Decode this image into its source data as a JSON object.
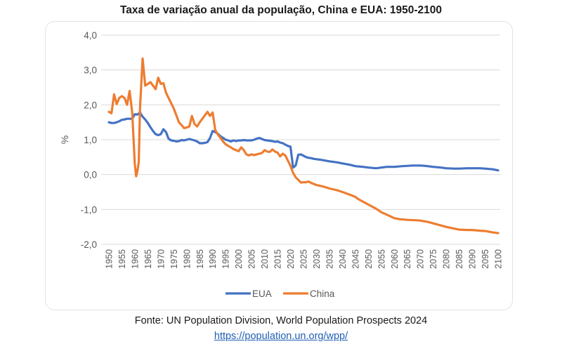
{
  "chart_data": {
    "type": "line",
    "title": "Taxa de variação anual da população, China e EUA: 1950-2100",
    "xlabel": "",
    "ylabel": "%",
    "xlim": [
      1950,
      2100
    ],
    "ylim": [
      -2.0,
      4.0
    ],
    "y_ticks": [
      4.0,
      3.0,
      2.0,
      1.0,
      0.0,
      -1.0,
      -2.0
    ],
    "y_tick_labels": [
      "4,0",
      "3,0",
      "2,0",
      "1,0",
      "0,0",
      "-1,0",
      "-2,0"
    ],
    "x_ticks": [
      1950,
      1955,
      1960,
      1965,
      1970,
      1975,
      1980,
      1985,
      1990,
      1995,
      2000,
      2005,
      2010,
      2015,
      2020,
      2025,
      2030,
      2035,
      2040,
      2045,
      2050,
      2055,
      2060,
      2065,
      2070,
      2075,
      2080,
      2085,
      2090,
      2095,
      2100
    ],
    "grid": true,
    "legend_position": "bottom",
    "series": [
      {
        "name": "EUA",
        "color": "#4472C4",
        "points": [
          [
            1950,
            1.5
          ],
          [
            1951,
            1.48
          ],
          [
            1952,
            1.48
          ],
          [
            1953,
            1.5
          ],
          [
            1954,
            1.53
          ],
          [
            1955,
            1.57
          ],
          [
            1956,
            1.58
          ],
          [
            1957,
            1.6
          ],
          [
            1958,
            1.6
          ],
          [
            1959,
            1.6
          ],
          [
            1960,
            1.73
          ],
          [
            1961,
            1.72
          ],
          [
            1962,
            1.78
          ],
          [
            1963,
            1.66
          ],
          [
            1964,
            1.58
          ],
          [
            1965,
            1.48
          ],
          [
            1966,
            1.36
          ],
          [
            1967,
            1.25
          ],
          [
            1968,
            1.16
          ],
          [
            1969,
            1.13
          ],
          [
            1970,
            1.16
          ],
          [
            1971,
            1.3
          ],
          [
            1972,
            1.22
          ],
          [
            1973,
            1.03
          ],
          [
            1974,
            0.98
          ],
          [
            1975,
            0.97
          ],
          [
            1976,
            0.95
          ],
          [
            1977,
            0.96
          ],
          [
            1978,
            0.99
          ],
          [
            1979,
            0.98
          ],
          [
            1980,
            1.0
          ],
          [
            1981,
            1.02
          ],
          [
            1982,
            1.0
          ],
          [
            1983,
            0.98
          ],
          [
            1984,
            0.95
          ],
          [
            1985,
            0.9
          ],
          [
            1986,
            0.9
          ],
          [
            1987,
            0.91
          ],
          [
            1988,
            0.93
          ],
          [
            1989,
            1.05
          ],
          [
            1990,
            1.25
          ],
          [
            1991,
            1.22
          ],
          [
            1992,
            1.17
          ],
          [
            1993,
            1.1
          ],
          [
            1994,
            1.05
          ],
          [
            1995,
            1.0
          ],
          [
            1996,
            0.98
          ],
          [
            1997,
            0.95
          ],
          [
            1998,
            0.98
          ],
          [
            1999,
            0.96
          ],
          [
            2000,
            0.98
          ],
          [
            2001,
            0.98
          ],
          [
            2002,
            0.99
          ],
          [
            2003,
            0.98
          ],
          [
            2004,
            0.98
          ],
          [
            2005,
            0.98
          ],
          [
            2006,
            1.0
          ],
          [
            2007,
            1.03
          ],
          [
            2008,
            1.05
          ],
          [
            2009,
            1.02
          ],
          [
            2010,
            0.99
          ],
          [
            2011,
            0.98
          ],
          [
            2012,
            0.97
          ],
          [
            2013,
            0.96
          ],
          [
            2014,
            0.94
          ],
          [
            2015,
            0.95
          ],
          [
            2016,
            0.92
          ],
          [
            2017,
            0.9
          ],
          [
            2018,
            0.86
          ],
          [
            2019,
            0.82
          ],
          [
            2020,
            0.8
          ],
          [
            2021,
            0.2
          ],
          [
            2022,
            0.26
          ],
          [
            2023,
            0.57
          ],
          [
            2024,
            0.58
          ],
          [
            2025,
            0.54
          ],
          [
            2026,
            0.5
          ],
          [
            2027,
            0.48
          ],
          [
            2028,
            0.47
          ],
          [
            2029,
            0.45
          ],
          [
            2030,
            0.44
          ],
          [
            2032,
            0.42
          ],
          [
            2035,
            0.38
          ],
          [
            2038,
            0.35
          ],
          [
            2040,
            0.32
          ],
          [
            2043,
            0.28
          ],
          [
            2045,
            0.24
          ],
          [
            2048,
            0.22
          ],
          [
            2050,
            0.2
          ],
          [
            2053,
            0.18
          ],
          [
            2055,
            0.2
          ],
          [
            2057,
            0.22
          ],
          [
            2060,
            0.22
          ],
          [
            2063,
            0.24
          ],
          [
            2065,
            0.25
          ],
          [
            2067,
            0.26
          ],
          [
            2070,
            0.26
          ],
          [
            2072,
            0.25
          ],
          [
            2075,
            0.22
          ],
          [
            2078,
            0.2
          ],
          [
            2080,
            0.18
          ],
          [
            2083,
            0.17
          ],
          [
            2085,
            0.17
          ],
          [
            2088,
            0.18
          ],
          [
            2090,
            0.18
          ],
          [
            2093,
            0.18
          ],
          [
            2095,
            0.17
          ],
          [
            2098,
            0.15
          ],
          [
            2100,
            0.12
          ]
        ]
      },
      {
        "name": "China",
        "color": "#ED7D31",
        "points": [
          [
            1950,
            1.8
          ],
          [
            1951,
            1.76
          ],
          [
            1952,
            2.3
          ],
          [
            1953,
            2.02
          ],
          [
            1954,
            2.2
          ],
          [
            1955,
            2.25
          ],
          [
            1956,
            2.2
          ],
          [
            1957,
            2.0
          ],
          [
            1958,
            2.4
          ],
          [
            1959,
            1.78
          ],
          [
            1960,
            0.3
          ],
          [
            1960.5,
            -0.05
          ],
          [
            1961,
            0.1
          ],
          [
            1961.5,
            0.35
          ],
          [
            1962,
            1.9
          ],
          [
            1963,
            3.33
          ],
          [
            1964,
            2.55
          ],
          [
            1965,
            2.6
          ],
          [
            1966,
            2.65
          ],
          [
            1967,
            2.55
          ],
          [
            1968,
            2.45
          ],
          [
            1969,
            2.78
          ],
          [
            1970,
            2.6
          ],
          [
            1971,
            2.62
          ],
          [
            1972,
            2.35
          ],
          [
            1973,
            2.2
          ],
          [
            1974,
            2.05
          ],
          [
            1975,
            1.9
          ],
          [
            1976,
            1.7
          ],
          [
            1977,
            1.5
          ],
          [
            1978,
            1.42
          ],
          [
            1979,
            1.33
          ],
          [
            1980,
            1.35
          ],
          [
            1981,
            1.38
          ],
          [
            1982,
            1.68
          ],
          [
            1983,
            1.45
          ],
          [
            1984,
            1.38
          ],
          [
            1985,
            1.5
          ],
          [
            1986,
            1.6
          ],
          [
            1987,
            1.7
          ],
          [
            1988,
            1.8
          ],
          [
            1989,
            1.68
          ],
          [
            1990,
            1.78
          ],
          [
            1991,
            1.28
          ],
          [
            1992,
            1.15
          ],
          [
            1993,
            1.05
          ],
          [
            1994,
            0.95
          ],
          [
            1995,
            0.87
          ],
          [
            1996,
            0.82
          ],
          [
            1997,
            0.78
          ],
          [
            1998,
            0.73
          ],
          [
            1999,
            0.7
          ],
          [
            2000,
            0.67
          ],
          [
            2001,
            0.78
          ],
          [
            2002,
            0.7
          ],
          [
            2003,
            0.58
          ],
          [
            2004,
            0.55
          ],
          [
            2005,
            0.58
          ],
          [
            2006,
            0.56
          ],
          [
            2007,
            0.58
          ],
          [
            2008,
            0.6
          ],
          [
            2009,
            0.62
          ],
          [
            2010,
            0.7
          ],
          [
            2011,
            0.66
          ],
          [
            2012,
            0.65
          ],
          [
            2013,
            0.72
          ],
          [
            2014,
            0.66
          ],
          [
            2015,
            0.63
          ],
          [
            2016,
            0.52
          ],
          [
            2017,
            0.6
          ],
          [
            2018,
            0.55
          ],
          [
            2019,
            0.4
          ],
          [
            2020,
            0.25
          ],
          [
            2021,
            0.05
          ],
          [
            2022,
            -0.08
          ],
          [
            2023,
            -0.15
          ],
          [
            2024,
            -0.23
          ],
          [
            2025,
            -0.22
          ],
          [
            2026,
            -0.22
          ],
          [
            2027,
            -0.2
          ],
          [
            2028,
            -0.24
          ],
          [
            2030,
            -0.3
          ],
          [
            2033,
            -0.35
          ],
          [
            2035,
            -0.4
          ],
          [
            2038,
            -0.45
          ],
          [
            2040,
            -0.5
          ],
          [
            2043,
            -0.58
          ],
          [
            2045,
            -0.64
          ],
          [
            2046,
            -0.7
          ],
          [
            2048,
            -0.78
          ],
          [
            2050,
            -0.86
          ],
          [
            2053,
            -0.98
          ],
          [
            2055,
            -1.08
          ],
          [
            2058,
            -1.18
          ],
          [
            2060,
            -1.25
          ],
          [
            2062,
            -1.28
          ],
          [
            2065,
            -1.3
          ],
          [
            2068,
            -1.31
          ],
          [
            2070,
            -1.32
          ],
          [
            2073,
            -1.36
          ],
          [
            2075,
            -1.4
          ],
          [
            2078,
            -1.46
          ],
          [
            2080,
            -1.5
          ],
          [
            2083,
            -1.55
          ],
          [
            2085,
            -1.58
          ],
          [
            2088,
            -1.59
          ],
          [
            2090,
            -1.59
          ],
          [
            2093,
            -1.61
          ],
          [
            2095,
            -1.62
          ],
          [
            2098,
            -1.66
          ],
          [
            2100,
            -1.68
          ]
        ]
      }
    ]
  },
  "source": {
    "text": "Fonte: UN Population Division, World Population Prospects 2024",
    "link": "https://population.un.org/wpp/"
  }
}
